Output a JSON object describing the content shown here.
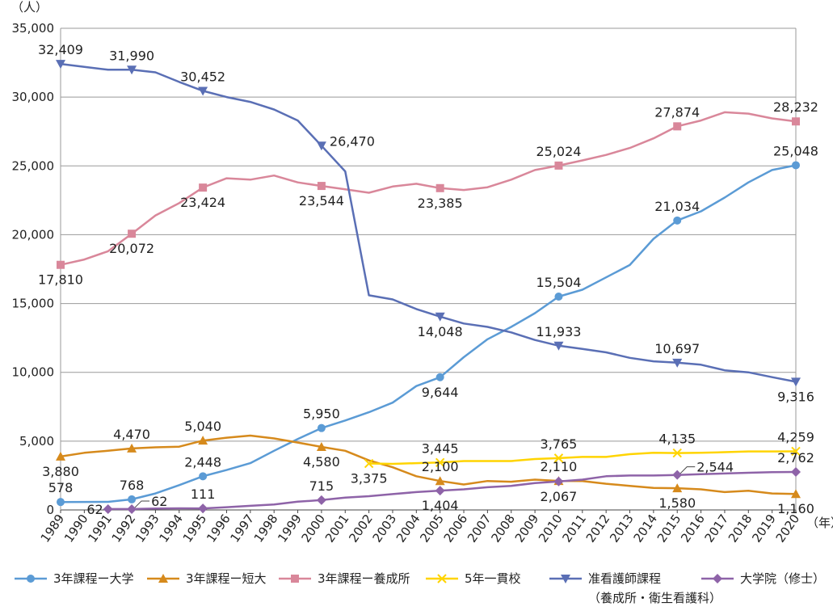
{
  "chart_data": {
    "type": "line",
    "y_unit": "（人）",
    "x_unit": "（年）",
    "ylim": [
      0,
      35000
    ],
    "y_ticks": [
      "0",
      "5,000",
      "10,000",
      "15,000",
      "20,000",
      "25,000",
      "30,000",
      "35,000"
    ],
    "grid": true,
    "legend_position": "bottom",
    "x": [
      1989,
      1990,
      1991,
      1992,
      1993,
      1994,
      1995,
      1996,
      1997,
      1998,
      1999,
      2000,
      2001,
      2002,
      2003,
      2004,
      2005,
      2006,
      2007,
      2008,
      2009,
      2010,
      2011,
      2012,
      2013,
      2014,
      2015,
      2016,
      2017,
      2018,
      2019,
      2020
    ],
    "series": [
      {
        "name": "3年課程ー大学",
        "color": "#5b9bd5",
        "marker": "circle",
        "values": [
          578,
          580,
          590,
          768,
          1200,
          1800,
          2448,
          2900,
          3400,
          4300,
          5150,
          5950,
          6500,
          7100,
          7800,
          9000,
          9644,
          11100,
          12400,
          13300,
          14300,
          15504,
          16000,
          16900,
          17800,
          19700,
          21034,
          21700,
          22700,
          23800,
          24700,
          25048
        ]
      },
      {
        "name": "3年課程ー短大",
        "color": "#d68a1c",
        "marker": "triangle",
        "values": [
          3880,
          4150,
          4300,
          4470,
          4550,
          4600,
          5040,
          5250,
          5400,
          5200,
          4900,
          4580,
          4300,
          3600,
          3100,
          2450,
          2100,
          1850,
          2100,
          2050,
          2200,
          2110,
          2100,
          1900,
          1750,
          1600,
          1580,
          1500,
          1300,
          1400,
          1200,
          1160
        ]
      },
      {
        "name": "3年課程ー養成所",
        "color": "#d9879a",
        "marker": "square",
        "values": [
          17810,
          18200,
          18800,
          20072,
          21400,
          22300,
          23424,
          24100,
          24000,
          24300,
          23800,
          23544,
          23300,
          23050,
          23500,
          23700,
          23385,
          23250,
          23450,
          24000,
          24700,
          25024,
          25400,
          25800,
          26300,
          27000,
          27874,
          28300,
          28900,
          28800,
          28450,
          28232
        ]
      },
      {
        "name": "5年一貫校",
        "color": "#ffd400",
        "marker": "x",
        "values": [
          null,
          null,
          null,
          null,
          null,
          null,
          null,
          null,
          null,
          null,
          null,
          null,
          null,
          3375,
          3350,
          3400,
          3445,
          3550,
          3550,
          3550,
          3700,
          3765,
          3850,
          3850,
          4050,
          4150,
          4135,
          4150,
          4200,
          4250,
          4250,
          4259
        ]
      },
      {
        "name": "准看護師課程",
        "name2": "（養成所・衛生看護科）",
        "color": "#5a6fb5",
        "marker": "triangle-down",
        "values": [
          32409,
          32200,
          31990,
          31990,
          31800,
          31100,
          30452,
          30000,
          29650,
          29100,
          28300,
          26470,
          24600,
          15600,
          15300,
          14600,
          14048,
          13550,
          13300,
          12900,
          12350,
          11933,
          11700,
          11450,
          11050,
          10800,
          10697,
          10550,
          10150,
          10000,
          9650,
          9316
        ]
      },
      {
        "name": "大学院（修士）",
        "color": "#8e63a8",
        "marker": "diamond",
        "values": [
          null,
          null,
          62,
          62,
          100,
          120,
          111,
          200,
          300,
          400,
          600,
          715,
          900,
          1000,
          1150,
          1300,
          1404,
          1500,
          1650,
          1750,
          1950,
          2067,
          2200,
          2450,
          2500,
          2500,
          2544,
          2600,
          2650,
          2700,
          2750,
          2762
        ]
      }
    ],
    "annotations": [
      {
        "series": 0,
        "index": 0,
        "text": "578",
        "pos": "above"
      },
      {
        "series": 0,
        "index": 3,
        "text": "768",
        "pos": "above"
      },
      {
        "series": 0,
        "index": 6,
        "text": "2,448",
        "pos": "above"
      },
      {
        "series": 0,
        "index": 11,
        "text": "5,950",
        "pos": "above"
      },
      {
        "series": 0,
        "index": 16,
        "text": "9,644",
        "pos": "below"
      },
      {
        "series": 0,
        "index": 21,
        "text": "15,504",
        "pos": "above"
      },
      {
        "series": 0,
        "index": 26,
        "text": "21,034",
        "pos": "above"
      },
      {
        "series": 0,
        "index": 31,
        "text": "25,048",
        "pos": "above"
      },
      {
        "series": 1,
        "index": 0,
        "text": "3,880",
        "pos": "below"
      },
      {
        "series": 1,
        "index": 3,
        "text": "4,470",
        "pos": "above"
      },
      {
        "series": 1,
        "index": 6,
        "text": "5,040",
        "pos": "above"
      },
      {
        "series": 1,
        "index": 11,
        "text": "4,580",
        "pos": "below"
      },
      {
        "series": 1,
        "index": 16,
        "text": "2,100",
        "pos": "above"
      },
      {
        "series": 1,
        "index": 21,
        "text": "2,110",
        "pos": "above"
      },
      {
        "series": 1,
        "index": 26,
        "text": "1,580",
        "pos": "below"
      },
      {
        "series": 1,
        "index": 31,
        "text": "1,160",
        "pos": "below"
      },
      {
        "series": 2,
        "index": 0,
        "text": "17,810",
        "pos": "below"
      },
      {
        "series": 2,
        "index": 3,
        "text": "20,072",
        "pos": "below"
      },
      {
        "series": 2,
        "index": 6,
        "text": "23,424",
        "pos": "below"
      },
      {
        "series": 2,
        "index": 11,
        "text": "23,544",
        "pos": "below"
      },
      {
        "series": 2,
        "index": 16,
        "text": "23,385",
        "pos": "below"
      },
      {
        "series": 2,
        "index": 21,
        "text": "25,024",
        "pos": "above"
      },
      {
        "series": 2,
        "index": 26,
        "text": "27,874",
        "pos": "above"
      },
      {
        "series": 2,
        "index": 31,
        "text": "28,232",
        "pos": "above"
      },
      {
        "series": 3,
        "index": 13,
        "text": "3,375",
        "pos": "below"
      },
      {
        "series": 3,
        "index": 16,
        "text": "3,445",
        "pos": "above"
      },
      {
        "series": 3,
        "index": 21,
        "text": "3,765",
        "pos": "above"
      },
      {
        "series": 3,
        "index": 26,
        "text": "4,135",
        "pos": "above"
      },
      {
        "series": 3,
        "index": 31,
        "text": "4,259",
        "pos": "above"
      },
      {
        "series": 4,
        "index": 0,
        "text": "32,409",
        "pos": "above"
      },
      {
        "series": 4,
        "index": 3,
        "text": "31,990",
        "pos": "above"
      },
      {
        "series": 4,
        "index": 6,
        "text": "30,452",
        "pos": "above"
      },
      {
        "series": 4,
        "index": 11,
        "text": "26,470",
        "pos": "right"
      },
      {
        "series": 4,
        "index": 16,
        "text": "14,048",
        "pos": "below"
      },
      {
        "series": 4,
        "index": 21,
        "text": "11,933",
        "pos": "above"
      },
      {
        "series": 4,
        "index": 26,
        "text": "10,697",
        "pos": "above"
      },
      {
        "series": 4,
        "index": 31,
        "text": "9,316",
        "pos": "below"
      },
      {
        "series": 5,
        "index": 2,
        "text": "62",
        "pos": "left"
      },
      {
        "series": 5,
        "index": 3,
        "text": "62",
        "pos": "callout-right"
      },
      {
        "series": 5,
        "index": 6,
        "text": "111",
        "pos": "above"
      },
      {
        "series": 5,
        "index": 11,
        "text": "715",
        "pos": "above"
      },
      {
        "series": 5,
        "index": 16,
        "text": "1,404",
        "pos": "below"
      },
      {
        "series": 5,
        "index": 21,
        "text": "2,067",
        "pos": "below"
      },
      {
        "series": 5,
        "index": 26,
        "text": "2,544",
        "pos": "callout-right"
      },
      {
        "series": 5,
        "index": 31,
        "text": "2,762",
        "pos": "above"
      }
    ]
  }
}
